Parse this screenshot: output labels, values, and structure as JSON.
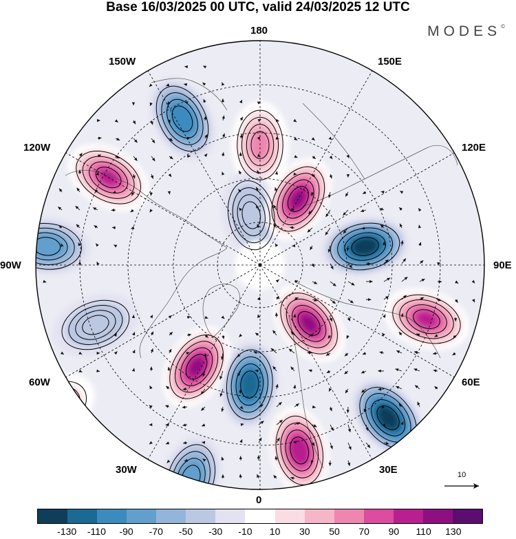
{
  "title": "Base 16/03/2025 00 UTC, valid 24/03/2025 12 UTC",
  "brand": "MODES",
  "brand_mark": "©",
  "longitude_labels": {
    "lon_180": "180",
    "lon_150e": "150E",
    "lon_120e": "120E",
    "lon_90e": "90E",
    "lon_60e": "60E",
    "lon_30e": "30E",
    "lon_0": "0",
    "lon_30w": "30W",
    "lon_60w": "60W",
    "lon_90w": "90W",
    "lon_120w": "120W",
    "lon_150w": "150W"
  },
  "vector_scale_label": "10",
  "colorbar": {
    "ticks": [
      "-130",
      "-110",
      "-90",
      "-70",
      "-50",
      "-30",
      "-10",
      "10",
      "30",
      "50",
      "70",
      "90",
      "110",
      "130"
    ],
    "colors": [
      "#0e3e5a",
      "#1b6a94",
      "#3b8bbf",
      "#629fcc",
      "#93b5d9",
      "#bcc7e2",
      "#e2e2f1",
      "#ffffff",
      "#fadde2",
      "#f5b6c8",
      "#ee86b0",
      "#dc4da0",
      "#b81f8f",
      "#8e1080",
      "#5c0d70"
    ]
  },
  "anomaly_cells": [
    {
      "name": "anomaly-positive-180",
      "lon": 180,
      "lat": 62,
      "value": 55
    },
    {
      "name": "anomaly-negative-155w",
      "lon": -152,
      "lat": 52,
      "value": -90
    },
    {
      "name": "anomaly-positive-118w",
      "lon": -120,
      "lat": 50,
      "value": 105
    },
    {
      "name": "anomaly-negative-95w",
      "lon": -95,
      "lat": 42,
      "value": -70
    },
    {
      "name": "anomaly-negative-80w",
      "lon": -70,
      "lat": 50,
      "value": -45
    },
    {
      "name": "anomaly-negative-165w-north",
      "lon": -170,
      "lat": 78,
      "value": -45
    },
    {
      "name": "anomaly-positive-150e",
      "lon": 150,
      "lat": 72,
      "value": 120
    },
    {
      "name": "anomaly-negative-110e",
      "lon": 100,
      "lat": 65,
      "value": -130
    },
    {
      "name": "anomaly-positive-75e",
      "lon": 72,
      "lat": 50,
      "value": 105
    },
    {
      "name": "anomaly-positive-60e-north",
      "lon": 40,
      "lat": 72,
      "value": 115
    },
    {
      "name": "anomaly-negative-40e",
      "lon": 40,
      "lat": 45,
      "value": -135
    },
    {
      "name": "anomaly-positive-20e",
      "lon": 12,
      "lat": 47,
      "value": 110
    },
    {
      "name": "anomaly-negative-10w",
      "lon": -5,
      "lat": 62,
      "value": -115
    },
    {
      "name": "anomaly-positive-35w",
      "lon": -32,
      "lat": 62,
      "value": 125
    },
    {
      "name": "anomaly-negative-30w",
      "lon": -18,
      "lat": 40,
      "value": -85
    },
    {
      "name": "anomaly-positive-50w",
      "lon": -55,
      "lat": 35,
      "value": 35
    }
  ]
}
